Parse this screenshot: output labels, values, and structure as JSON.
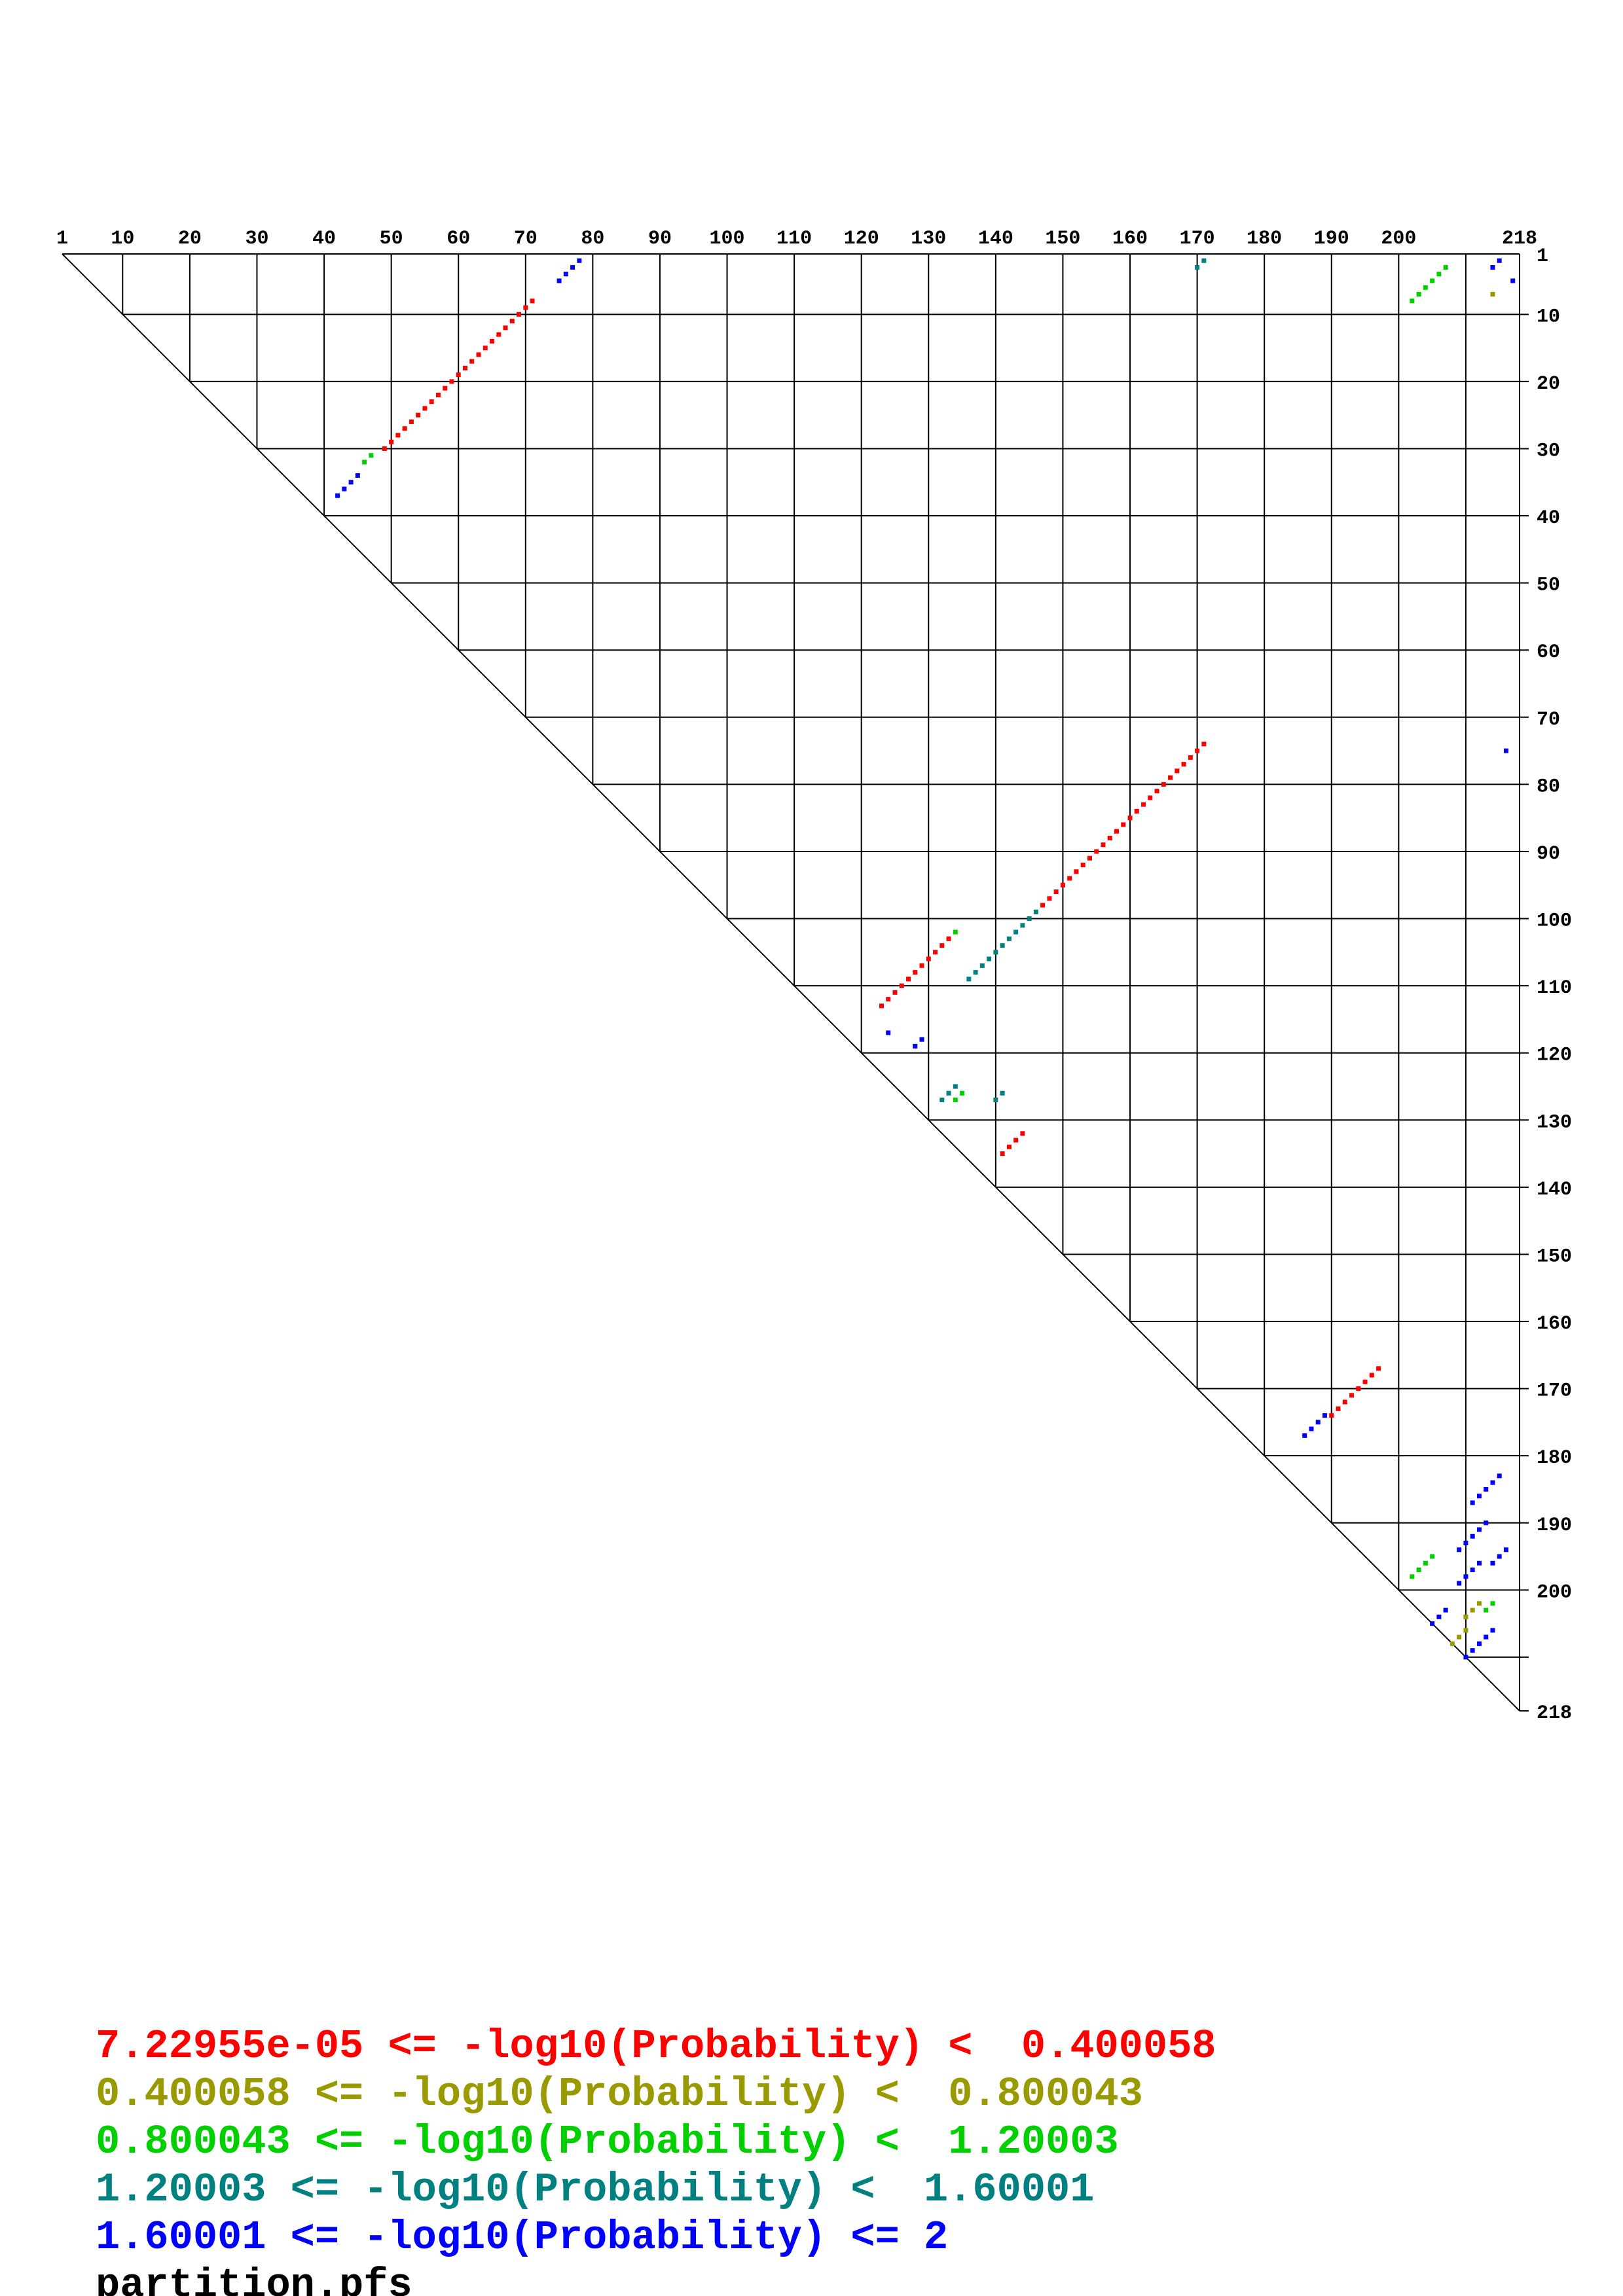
{
  "title": "partition.pfs",
  "legend": [
    {
      "text": "7.22955e-05 <= -log10(Probability) <  0.400058",
      "color": "#ff0000"
    },
    {
      "text": "0.400058 <= -log10(Probability) <  0.800043",
      "color": "#999900"
    },
    {
      "text": "0.800043 <= -log10(Probability) <  1.20003",
      "color": "#00d000"
    },
    {
      "text": "1.20003 <= -log10(Probability) <  1.60001",
      "color": "#008080"
    },
    {
      "text": "1.60001 <= -log10(Probability) <= 2",
      "color": "#0000ff"
    },
    {
      "text": "partition.pfs",
      "color": "#000000"
    }
  ],
  "chart_data": {
    "type": "scatter",
    "subtype": "rna-base-pair-probability-dot-plot",
    "title": "partition.pfs",
    "sequence_length": 218,
    "x_range": [
      1,
      218
    ],
    "y_range": [
      1,
      218
    ],
    "grid_step": 10,
    "axis_ticks": [
      1,
      10,
      20,
      30,
      40,
      50,
      60,
      70,
      80,
      90,
      100,
      110,
      120,
      130,
      140,
      150,
      160,
      170,
      180,
      190,
      200,
      218
    ],
    "grid_on": true,
    "legend_position": "below-plot",
    "colors": {
      "r": "#ff0000",
      "o": "#999900",
      "g": "#00d000",
      "t": "#008080",
      "b": "#0000ff"
    },
    "classes": [
      {
        "color_key": "r",
        "color": "#ff0000",
        "range": "7.22955e-05 <= -log10(Probability) < 0.400058"
      },
      {
        "color_key": "o",
        "color": "#999900",
        "range": "0.400058 <= -log10(Probability) < 0.800043"
      },
      {
        "color_key": "g",
        "color": "#00d000",
        "range": "0.800043 <= -log10(Probability) < 1.20003"
      },
      {
        "color_key": "t",
        "color": "#008080",
        "range": "1.20003 <= -log10(Probability) < 1.60001"
      },
      {
        "color_key": "b",
        "color": "#0000ff",
        "range": "1.60001 <= -log10(Probability) <= 2"
      }
    ],
    "run_format": "each run starts at (row i, col j); point k of the run is (i+k, j-k)",
    "runs": [
      {
        "c": "b",
        "i": 2,
        "j": 78,
        "n": 4
      },
      {
        "c": "t",
        "i": 2,
        "j": 171,
        "n": 2
      },
      {
        "c": "g",
        "i": 3,
        "j": 207,
        "n": 6
      },
      {
        "c": "b",
        "i": 2,
        "j": 215,
        "n": 2
      },
      {
        "c": "b",
        "i": 5,
        "j": 217,
        "n": 1
      },
      {
        "c": "o",
        "i": 7,
        "j": 214,
        "n": 1
      },
      {
        "c": "r",
        "i": 8,
        "j": 71,
        "n": 23
      },
      {
        "c": "g",
        "i": 31,
        "j": 47,
        "n": 2
      },
      {
        "c": "b",
        "i": 34,
        "j": 45,
        "n": 4
      },
      {
        "c": "b",
        "i": 75,
        "j": 216,
        "n": 1
      },
      {
        "c": "r",
        "i": 74,
        "j": 171,
        "n": 25
      },
      {
        "c": "t",
        "i": 99,
        "j": 146,
        "n": 11
      },
      {
        "c": "g",
        "i": 102,
        "j": 134,
        "n": 1
      },
      {
        "c": "r",
        "i": 103,
        "j": 133,
        "n": 11
      },
      {
        "c": "b",
        "i": 117,
        "j": 124,
        "n": 1
      },
      {
        "c": "b",
        "i": 118,
        "j": 129,
        "n": 2
      },
      {
        "c": "t",
        "i": 125,
        "j": 134,
        "n": 3
      },
      {
        "c": "g",
        "i": 126,
        "j": 135,
        "n": 2
      },
      {
        "c": "t",
        "i": 126,
        "j": 141,
        "n": 2
      },
      {
        "c": "r",
        "i": 132,
        "j": 144,
        "n": 4
      },
      {
        "c": "r",
        "i": 167,
        "j": 197,
        "n": 8
      },
      {
        "c": "b",
        "i": 174,
        "j": 189,
        "n": 4
      },
      {
        "c": "b",
        "i": 183,
        "j": 215,
        "n": 5
      },
      {
        "c": "b",
        "i": 190,
        "j": 213,
        "n": 5
      },
      {
        "c": "b",
        "i": 194,
        "j": 216,
        "n": 3
      },
      {
        "c": "g",
        "i": 195,
        "j": 205,
        "n": 4
      },
      {
        "c": "b",
        "i": 196,
        "j": 212,
        "n": 4
      },
      {
        "c": "o",
        "i": 202,
        "j": 212,
        "n": 3
      },
      {
        "c": "g",
        "i": 202,
        "j": 214,
        "n": 2
      },
      {
        "c": "b",
        "i": 203,
        "j": 207,
        "n": 3
      },
      {
        "c": "o",
        "i": 206,
        "j": 210,
        "n": 3
      },
      {
        "c": "b",
        "i": 206,
        "j": 214,
        "n": 3
      },
      {
        "c": "b",
        "i": 209,
        "j": 211,
        "n": 2
      }
    ]
  }
}
